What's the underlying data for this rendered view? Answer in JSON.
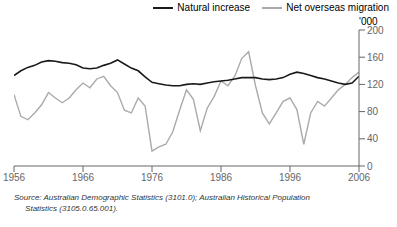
{
  "chart_data": {
    "type": "line",
    "x": [
      1956,
      1957,
      1958,
      1959,
      1960,
      1961,
      1962,
      1963,
      1964,
      1965,
      1966,
      1967,
      1968,
      1969,
      1970,
      1971,
      1972,
      1973,
      1974,
      1975,
      1976,
      1977,
      1978,
      1979,
      1980,
      1981,
      1982,
      1983,
      1984,
      1985,
      1986,
      1987,
      1988,
      1989,
      1990,
      1991,
      1992,
      1993,
      1994,
      1995,
      1996,
      1997,
      1998,
      1999,
      2000,
      2001,
      2002,
      2003,
      2004,
      2005,
      2006
    ],
    "series": [
      {
        "name": "Natural increase",
        "color": "#1a1a1a",
        "values": [
          133,
          140,
          145,
          148,
          153,
          155,
          154,
          152,
          151,
          149,
          144,
          143,
          144,
          148,
          151,
          156,
          150,
          144,
          140,
          131,
          123,
          121,
          119,
          118,
          118,
          120,
          121,
          120,
          122,
          124,
          125,
          126,
          128,
          130,
          130,
          130,
          128,
          127,
          128,
          130,
          135,
          138,
          136,
          133,
          130,
          128,
          125,
          122,
          120,
          122,
          132
        ]
      },
      {
        "name": "Net overseas migration",
        "color": "#aaaaaa",
        "values": [
          105,
          73,
          68,
          78,
          90,
          108,
          100,
          93,
          100,
          112,
          122,
          115,
          128,
          132,
          118,
          108,
          82,
          78,
          100,
          88,
          22,
          28,
          32,
          50,
          82,
          112,
          98,
          52,
          85,
          102,
          125,
          118,
          132,
          158,
          168,
          118,
          78,
          62,
          78,
          95,
          100,
          83,
          32,
          78,
          95,
          88,
          100,
          112,
          120,
          130,
          138
        ]
      }
    ],
    "ylabel": "'000",
    "annotations": [
      "Source: Australian Demographic Statistics (3101.0); Australian Historical Population\n     Statistics (3105.0.65.001)."
    ],
    "xlim": [
      1956,
      2006
    ],
    "ylim": [
      0,
      200
    ],
    "xticks": [
      1956,
      1966,
      1976,
      1986,
      1996,
      2006
    ],
    "yticks": [
      0,
      40,
      80,
      120,
      160,
      200
    ],
    "grid": false,
    "legend": "upper right"
  }
}
